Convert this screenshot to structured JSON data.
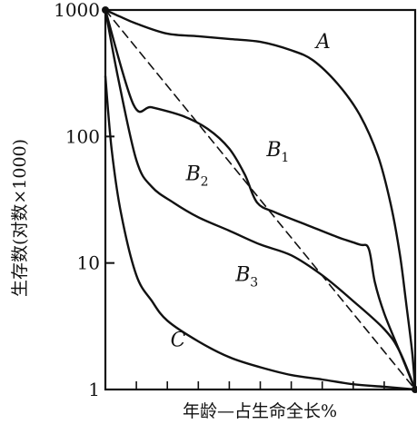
{
  "chart_data": {
    "type": "line",
    "xlabel": "年龄—占生命全长%",
    "ylabel": "生存数(对数×1000)",
    "yscale": "log",
    "ylim": [
      1,
      1000
    ],
    "xlim": [
      0,
      100
    ],
    "yticks": [
      {
        "value": 1000,
        "label": "1000"
      },
      {
        "value": 100,
        "label": "100"
      },
      {
        "value": 10,
        "label": "10"
      },
      {
        "value": 1,
        "label": "1"
      }
    ],
    "x_minor_ticks": [
      10,
      20,
      30,
      40,
      50,
      60,
      70,
      80,
      90
    ],
    "grid": false,
    "legend": "none",
    "series": [
      {
        "name": "A",
        "sub": "",
        "style": "solid",
        "points": [
          [
            0,
            1000
          ],
          [
            5,
            880
          ],
          [
            10,
            780
          ],
          [
            20,
            650
          ],
          [
            30,
            620
          ],
          [
            40,
            590
          ],
          [
            50,
            560
          ],
          [
            60,
            480
          ],
          [
            67,
            400
          ],
          [
            75,
            260
          ],
          [
            82,
            150
          ],
          [
            88,
            70
          ],
          [
            92,
            30
          ],
          [
            95,
            12
          ],
          [
            97,
            5
          ],
          [
            99,
            2
          ],
          [
            100,
            1
          ]
        ]
      },
      {
        "name": "B",
        "sub": "1",
        "style": "solid",
        "points": [
          [
            0,
            1000
          ],
          [
            9,
            180
          ],
          [
            15,
            170
          ],
          [
            25,
            145
          ],
          [
            33,
            115
          ],
          [
            40,
            80
          ],
          [
            45,
            50
          ],
          [
            49,
            30
          ],
          [
            55,
            25
          ],
          [
            65,
            20
          ],
          [
            75,
            16
          ],
          [
            82,
            14
          ],
          [
            85,
            13
          ],
          [
            87,
            7
          ],
          [
            90,
            4
          ],
          [
            95,
            2
          ],
          [
            100,
            1
          ]
        ]
      },
      {
        "name": "B",
        "sub": "2",
        "style": "dashed",
        "points": [
          [
            0,
            1000
          ],
          [
            100,
            1
          ]
        ]
      },
      {
        "name": "B",
        "sub": "3",
        "style": "solid",
        "points": [
          [
            0,
            1000
          ],
          [
            4,
            300
          ],
          [
            10,
            65
          ],
          [
            15,
            40
          ],
          [
            22,
            30
          ],
          [
            30,
            23
          ],
          [
            40,
            18
          ],
          [
            50,
            14
          ],
          [
            60,
            11.5
          ],
          [
            70,
            8
          ],
          [
            80,
            5
          ],
          [
            90,
            3
          ],
          [
            95,
            2
          ],
          [
            100,
            1
          ]
        ]
      },
      {
        "name": "C",
        "sub": "",
        "style": "solid",
        "points": [
          [
            0,
            300
          ],
          [
            2,
            80
          ],
          [
            5,
            25
          ],
          [
            10,
            8
          ],
          [
            15,
            5
          ],
          [
            20,
            3.5
          ],
          [
            30,
            2.4
          ],
          [
            40,
            1.8
          ],
          [
            50,
            1.5
          ],
          [
            60,
            1.3
          ],
          [
            70,
            1.2
          ],
          [
            80,
            1.1
          ],
          [
            90,
            1.05
          ],
          [
            100,
            1
          ]
        ]
      }
    ],
    "labels": [
      {
        "name": "A",
        "sub": "",
        "x": 68,
        "y": 500
      },
      {
        "name": "B",
        "sub": "1",
        "x": 52,
        "y": 70
      },
      {
        "name": "B",
        "sub": "2",
        "x": 26,
        "y": 45
      },
      {
        "name": "B",
        "sub": "3",
        "x": 42,
        "y": 7.2
      },
      {
        "name": "C",
        "sub": "",
        "x": 21,
        "y": 2.2
      }
    ]
  }
}
